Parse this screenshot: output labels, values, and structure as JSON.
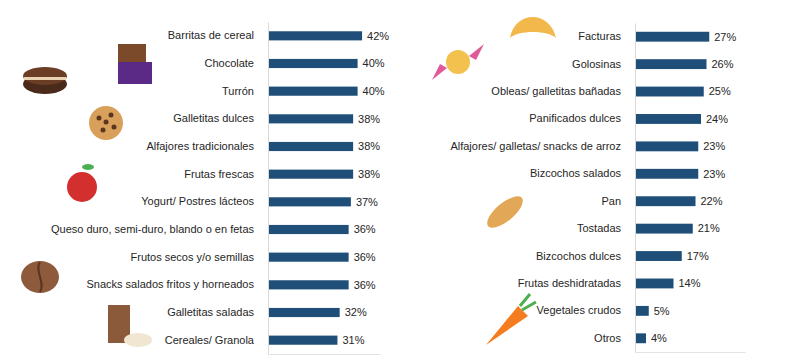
{
  "chart_data": [
    {
      "type": "bar",
      "orientation": "horizontal",
      "categories": [
        "Barritas de cereal",
        "Chocolate",
        "Turrón",
        "Galletitas dulces",
        "Alfajores tradicionales",
        "Frutas frescas",
        "Yogurt/ Postres lácteos",
        "Queso duro, semi-duro, blando o en fetas",
        "Frutos secos y/o semillas",
        "Snacks salados fritos y horneados",
        "Galletitas saladas",
        "Cereales/ Granola"
      ],
      "values": [
        42,
        40,
        40,
        38,
        38,
        38,
        37,
        36,
        36,
        36,
        32,
        31
      ],
      "value_labels": [
        "42%",
        "40%",
        "40%",
        "38%",
        "38%",
        "38%",
        "37%",
        "36%",
        "36%",
        "36%",
        "32%",
        "31%"
      ],
      "color": "#1f4e79",
      "xlim": [
        0,
        50
      ],
      "data_labels": true,
      "tick_labels": "y"
    },
    {
      "type": "bar",
      "orientation": "horizontal",
      "categories": [
        "Facturas",
        "Golosinas",
        "Obleas/ galletitas bañadas",
        "Panificados dulces",
        "Alfajores/ galletas/ snacks de arroz",
        "Bizcochos salados",
        "Pan",
        "Tostadas",
        "Bizcochos dulces",
        "Frutas deshidratadas",
        "Vegetales crudos",
        "Otros"
      ],
      "values": [
        27,
        26,
        25,
        24,
        23,
        23,
        22,
        21,
        17,
        14,
        5,
        4
      ],
      "value_labels": [
        "27%",
        "26%",
        "25%",
        "24%",
        "23%",
        "23%",
        "22%",
        "21%",
        "17%",
        "14%",
        "5%",
        "4%"
      ],
      "color": "#1f4e79",
      "xlim": [
        0,
        40
      ],
      "data_labels": true,
      "tick_labels": "y"
    }
  ]
}
